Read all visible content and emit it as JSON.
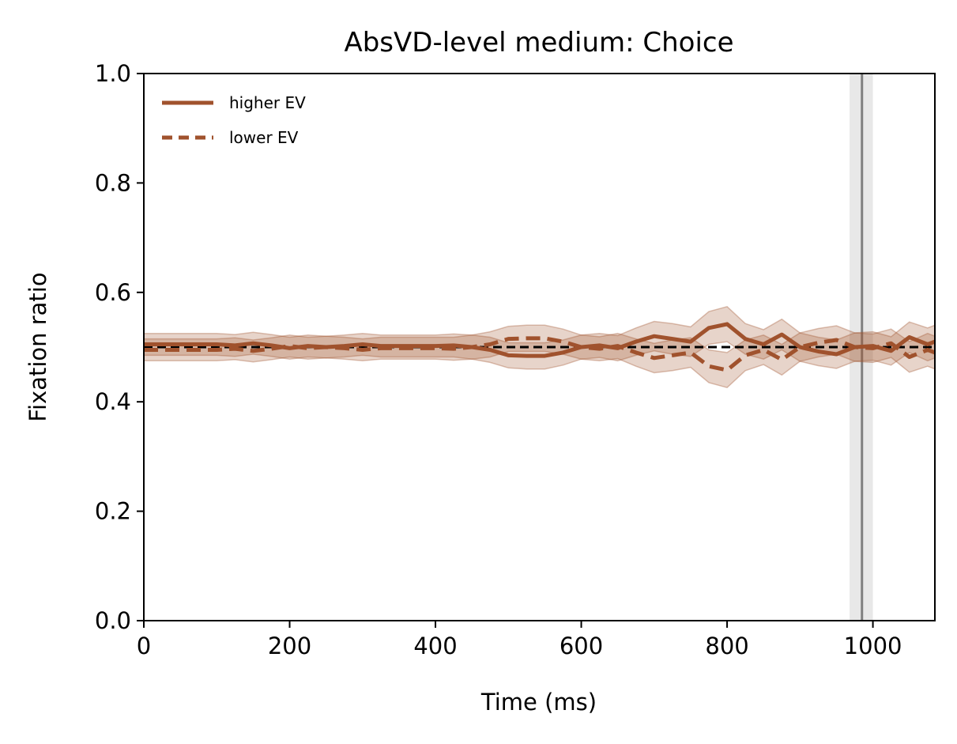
{
  "chart_data": {
    "type": "line",
    "title": "AbsVD-level medium: Choice",
    "xlabel": "Time (ms)",
    "ylabel": "Fixation ratio",
    "xlim": [
      0,
      1085
    ],
    "ylim": [
      0,
      1
    ],
    "xticks": [
      "0",
      "200",
      "400",
      "600",
      "800",
      "1000"
    ],
    "xtick_values": [
      0,
      200,
      400,
      600,
      800,
      1000
    ],
    "yticks": [
      "0.0",
      "0.2",
      "0.4",
      "0.6",
      "0.8",
      "1.0"
    ],
    "ytick_values": [
      0.0,
      0.2,
      0.4,
      0.6,
      0.8,
      1.0
    ],
    "grid": false,
    "legend_position": "top-left",
    "x": [
      0,
      25,
      50,
      75,
      100,
      125,
      150,
      175,
      200,
      225,
      250,
      275,
      300,
      325,
      350,
      375,
      400,
      425,
      450,
      475,
      500,
      525,
      550,
      575,
      600,
      625,
      650,
      675,
      700,
      725,
      750,
      775,
      800,
      825,
      850,
      875,
      900,
      925,
      950,
      975,
      1000,
      1025,
      1050,
      1075,
      1085
    ],
    "series": [
      {
        "name": "higher EV",
        "style": "solid",
        "color": "#a0522d",
        "values": [
          0.505,
          0.505,
          0.505,
          0.505,
          0.505,
          0.503,
          0.507,
          0.503,
          0.498,
          0.502,
          0.5,
          0.502,
          0.505,
          0.502,
          0.502,
          0.502,
          0.502,
          0.503,
          0.5,
          0.495,
          0.485,
          0.484,
          0.484,
          0.49,
          0.5,
          0.503,
          0.498,
          0.51,
          0.52,
          0.515,
          0.51,
          0.535,
          0.542,
          0.515,
          0.505,
          0.523,
          0.5,
          0.492,
          0.487,
          0.5,
          0.502,
          0.493,
          0.518,
          0.505,
          0.51
        ],
        "lower": [
          0.485,
          0.485,
          0.485,
          0.485,
          0.485,
          0.483,
          0.487,
          0.483,
          0.478,
          0.482,
          0.48,
          0.482,
          0.485,
          0.482,
          0.482,
          0.482,
          0.482,
          0.482,
          0.478,
          0.472,
          0.462,
          0.46,
          0.46,
          0.467,
          0.478,
          0.481,
          0.475,
          0.485,
          0.493,
          0.487,
          0.483,
          0.505,
          0.51,
          0.487,
          0.478,
          0.495,
          0.474,
          0.466,
          0.461,
          0.474,
          0.476,
          0.467,
          0.49,
          0.475,
          0.48
        ],
        "upper": [
          0.525,
          0.525,
          0.525,
          0.525,
          0.525,
          0.523,
          0.527,
          0.523,
          0.518,
          0.522,
          0.52,
          0.522,
          0.525,
          0.522,
          0.522,
          0.522,
          0.522,
          0.524,
          0.522,
          0.518,
          0.508,
          0.508,
          0.508,
          0.513,
          0.522,
          0.525,
          0.521,
          0.535,
          0.547,
          0.543,
          0.537,
          0.565,
          0.574,
          0.543,
          0.532,
          0.551,
          0.526,
          0.518,
          0.513,
          0.526,
          0.528,
          0.519,
          0.546,
          0.535,
          0.54
        ]
      },
      {
        "name": "lower EV",
        "style": "dashed",
        "color": "#a0522d",
        "values": [
          0.495,
          0.495,
          0.495,
          0.495,
          0.495,
          0.497,
          0.493,
          0.497,
          0.502,
          0.498,
          0.5,
          0.498,
          0.495,
          0.498,
          0.498,
          0.498,
          0.498,
          0.497,
          0.5,
          0.505,
          0.515,
          0.516,
          0.516,
          0.51,
          0.5,
          0.497,
          0.502,
          0.49,
          0.48,
          0.485,
          0.49,
          0.465,
          0.458,
          0.485,
          0.495,
          0.477,
          0.5,
          0.508,
          0.513,
          0.5,
          0.498,
          0.507,
          0.482,
          0.495,
          0.49
        ],
        "lower": [
          0.475,
          0.475,
          0.475,
          0.475,
          0.475,
          0.477,
          0.473,
          0.477,
          0.482,
          0.478,
          0.48,
          0.478,
          0.475,
          0.478,
          0.478,
          0.478,
          0.478,
          0.476,
          0.478,
          0.482,
          0.492,
          0.492,
          0.492,
          0.487,
          0.478,
          0.475,
          0.479,
          0.465,
          0.453,
          0.457,
          0.463,
          0.435,
          0.426,
          0.457,
          0.468,
          0.449,
          0.474,
          0.482,
          0.487,
          0.474,
          0.472,
          0.481,
          0.454,
          0.465,
          0.46
        ],
        "upper": [
          0.515,
          0.515,
          0.515,
          0.515,
          0.515,
          0.517,
          0.513,
          0.517,
          0.522,
          0.518,
          0.52,
          0.518,
          0.515,
          0.518,
          0.518,
          0.518,
          0.518,
          0.518,
          0.522,
          0.528,
          0.538,
          0.54,
          0.54,
          0.533,
          0.522,
          0.519,
          0.525,
          0.515,
          0.507,
          0.513,
          0.517,
          0.495,
          0.49,
          0.513,
          0.522,
          0.505,
          0.526,
          0.534,
          0.539,
          0.526,
          0.524,
          0.533,
          0.51,
          0.525,
          0.52
        ]
      }
    ],
    "reference_line": {
      "y": 0.5,
      "style": "dashed",
      "color": "#000000"
    },
    "vertical_marker": {
      "x": 985,
      "band": [
        968,
        1000
      ],
      "color": "#808080"
    }
  }
}
